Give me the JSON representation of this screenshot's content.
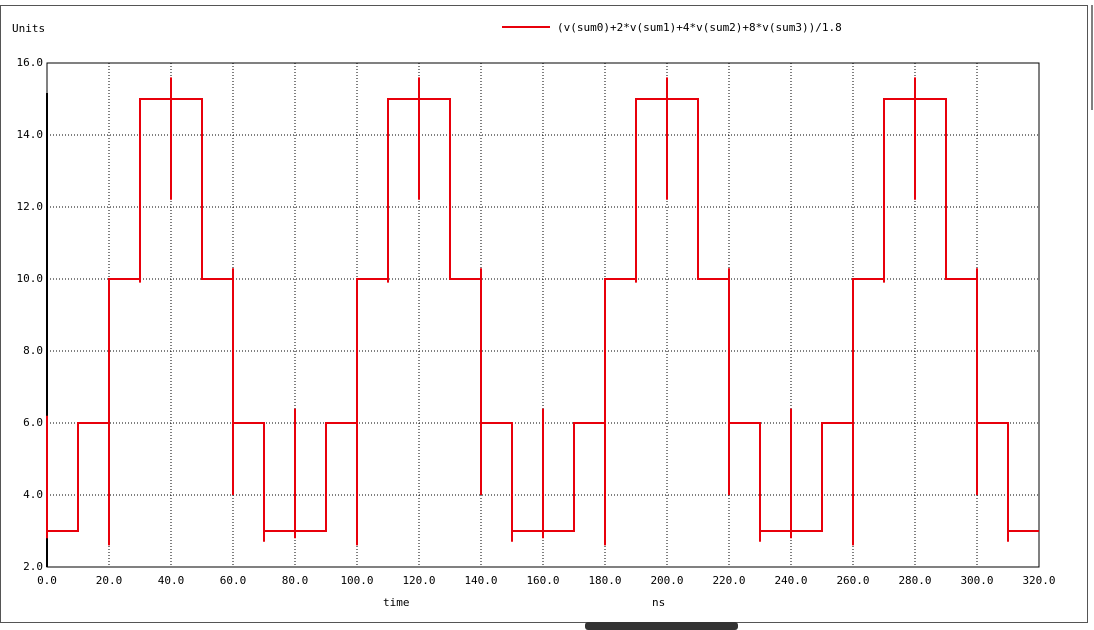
{
  "chart_data": {
    "type": "line",
    "y_label": "Units",
    "x_label": "time",
    "x_unit": "ns",
    "x": [
      0,
      0,
      0,
      10,
      10,
      20,
      20,
      20,
      30,
      30,
      30,
      40,
      40,
      40,
      40,
      50,
      50,
      60,
      60,
      60,
      60,
      70,
      70,
      70,
      80,
      80,
      80,
      80,
      90,
      90,
      100,
      100,
      100,
      110,
      110,
      110,
      120,
      120,
      120,
      120,
      130,
      130,
      140,
      140,
      140,
      140,
      150,
      150,
      150,
      160,
      160,
      160,
      160,
      170,
      170,
      180,
      180,
      180,
      190,
      190,
      190,
      200,
      200,
      200,
      200,
      210,
      210,
      220,
      220,
      220,
      220,
      230,
      230,
      230,
      240,
      240,
      240,
      240,
      250,
      250,
      260,
      260,
      260,
      270,
      270,
      270,
      280,
      280,
      280,
      280,
      290,
      290,
      300,
      300,
      300,
      300,
      310,
      310,
      310,
      320
    ],
    "series": [
      {
        "name": "(v(sum0)+2*v(sum1)+4*v(sum2)+8*v(sum3))/1.8",
        "color": "#e8000b",
        "values": [
          6.2,
          2.8,
          3,
          3,
          6,
          6,
          2.6,
          10,
          10,
          9.9,
          15,
          15,
          15.6,
          12.2,
          15,
          15,
          10,
          10,
          10.3,
          4,
          6,
          6,
          2.7,
          3,
          3,
          6.4,
          2.8,
          3,
          3,
          6,
          6,
          2.6,
          10,
          10,
          9.9,
          15,
          15,
          15.6,
          12.2,
          15,
          15,
          10,
          10,
          10.3,
          4,
          6,
          6,
          2.7,
          3,
          3,
          6.4,
          2.8,
          3,
          3,
          6,
          6,
          2.6,
          10,
          10,
          9.9,
          15,
          15,
          15.6,
          12.2,
          15,
          15,
          10,
          10,
          10.3,
          4,
          6,
          6,
          2.7,
          3,
          3,
          6.4,
          2.8,
          3,
          3,
          6,
          6,
          2.6,
          10,
          10,
          9.9,
          15,
          15,
          15.6,
          12.2,
          15,
          15,
          10,
          10,
          10.3,
          4,
          6,
          6,
          2.7,
          3,
          3
        ]
      }
    ],
    "xlim": [
      0,
      320
    ],
    "ylim": [
      2,
      16
    ],
    "xticks": [
      {
        "value": 0,
        "label": "0.0"
      },
      {
        "value": 20,
        "label": "20.0"
      },
      {
        "value": 40,
        "label": "40.0"
      },
      {
        "value": 60,
        "label": "60.0"
      },
      {
        "value": 80,
        "label": "80.0"
      },
      {
        "value": 100,
        "label": "100.0"
      },
      {
        "value": 120,
        "label": "120.0"
      },
      {
        "value": 140,
        "label": "140.0"
      },
      {
        "value": 160,
        "label": "160.0"
      },
      {
        "value": 180,
        "label": "180.0"
      },
      {
        "value": 200,
        "label": "200.0"
      },
      {
        "value": 220,
        "label": "220.0"
      },
      {
        "value": 240,
        "label": "240.0"
      },
      {
        "value": 260,
        "label": "260.0"
      },
      {
        "value": 280,
        "label": "280.0"
      },
      {
        "value": 300,
        "label": "300.0"
      },
      {
        "value": 320,
        "label": "320.0"
      }
    ],
    "yticks": [
      {
        "value": 2,
        "label": "2.0"
      },
      {
        "value": 4,
        "label": "4.0"
      },
      {
        "value": 6,
        "label": "6.0"
      },
      {
        "value": 8,
        "label": "8.0"
      },
      {
        "value": 10,
        "label": "10.0"
      },
      {
        "value": 12,
        "label": "12.0"
      },
      {
        "value": 14,
        "label": "14.0"
      },
      {
        "value": 16,
        "label": "16.0"
      }
    ],
    "grid": true
  }
}
